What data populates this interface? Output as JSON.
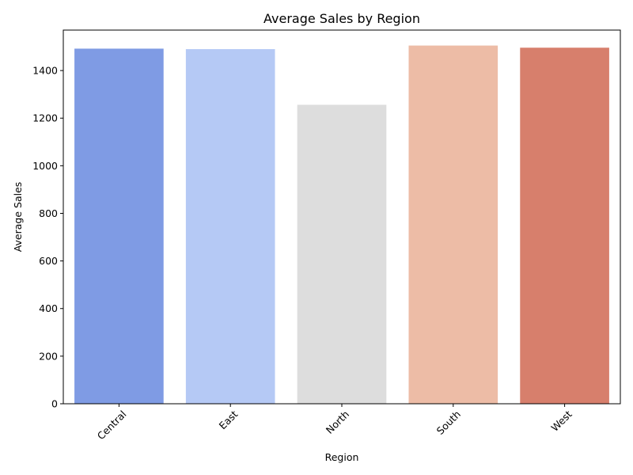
{
  "chart_data": {
    "type": "bar",
    "title": "Average Sales by Region",
    "xlabel": "Region",
    "ylabel": "Average Sales",
    "categories": [
      "Central",
      "East",
      "North",
      "South",
      "West"
    ],
    "values": [
      1492,
      1490,
      1256,
      1505,
      1496
    ],
    "colors": [
      "#7f9be4",
      "#b5c9f5",
      "#dddddd",
      "#edbca6",
      "#d77f6c"
    ],
    "ylim": [
      0,
      1570
    ],
    "yticks": [
      0,
      200,
      400,
      600,
      800,
      1000,
      1200,
      1400
    ],
    "grid": false,
    "xtick_rotation": 45
  }
}
